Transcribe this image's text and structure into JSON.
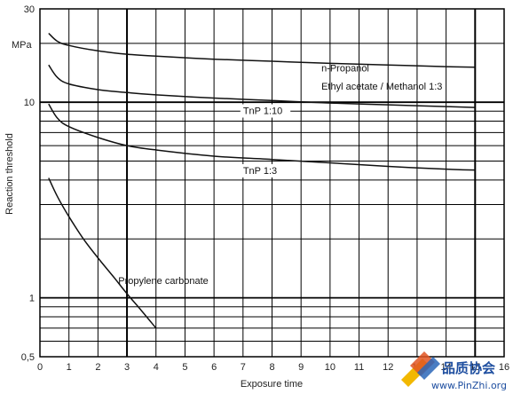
{
  "chart_data": {
    "type": "line",
    "title": "",
    "xlabel": "Exposure time",
    "ylabel": "Reaction threshold",
    "yunit": "MPa",
    "yscale": "log",
    "xlim": [
      0,
      16
    ],
    "ylim": [
      0.5,
      30
    ],
    "grid": true,
    "x_ticks": [
      "0",
      "1",
      "2",
      "3",
      "4",
      "5",
      "6",
      "7",
      "8",
      "9",
      "10",
      "11",
      "12",
      "13",
      "14",
      "15",
      "16"
    ],
    "y_ticks": [
      {
        "value": 30,
        "label": "30"
      },
      {
        "value": 10,
        "label": "10"
      },
      {
        "value": 1,
        "label": "1"
      },
      {
        "value": 0.5,
        "label": "0,5"
      }
    ],
    "series": [
      {
        "name": "n-Propanol",
        "color": "#111111",
        "x": [
          0.3,
          0.6,
          1,
          2,
          3,
          4,
          6,
          8,
          10,
          12,
          14,
          15
        ],
        "y": [
          22.5,
          20.5,
          19.5,
          18.3,
          17.6,
          17.2,
          16.6,
          16.2,
          15.8,
          15.5,
          15.2,
          15.1
        ]
      },
      {
        "name": "Ethyl acetate / Methanol 1:3",
        "color": "#111111",
        "x": [
          0.3,
          0.6,
          1,
          2,
          3,
          4,
          6,
          8,
          10,
          12,
          14,
          15
        ],
        "y": [
          15.5,
          13.4,
          12.4,
          11.6,
          11.2,
          10.9,
          10.5,
          10.2,
          9.9,
          9.7,
          9.5,
          9.4
        ]
      },
      {
        "name": "TnP 1:10",
        "color": "#111111",
        "x": [
          0.3,
          0.6,
          1,
          2,
          3,
          4,
          6,
          8,
          10,
          12,
          14,
          15
        ],
        "y": [
          9.8,
          8.3,
          7.5,
          6.6,
          6.0,
          5.7,
          5.3,
          5.1,
          4.9,
          4.7,
          4.55,
          4.5
        ]
      },
      {
        "name": "TnP 1:3",
        "color": "#111111",
        "x": [
          0.3,
          0.6,
          1,
          1.5,
          2,
          2.5,
          3,
          3.5,
          4
        ],
        "y": [
          4.1,
          3.3,
          2.6,
          2.0,
          1.6,
          1.3,
          1.05,
          0.86,
          0.7
        ]
      }
    ],
    "labels": [
      {
        "text": "n-Propanol",
        "x": 9.7,
        "y": 14.4,
        "boxed": false,
        "series": 0
      },
      {
        "text": "Ethyl acetate / Methanol 1:3",
        "x": 9.7,
        "y": 11.6,
        "boxed": false,
        "series": 1
      },
      {
        "text": "TnP 1:10",
        "x": 7.0,
        "y": 8.7,
        "boxed": true,
        "series": 1
      },
      {
        "text": "TnP 1:3",
        "x": 7.0,
        "y": 4.3,
        "boxed": true,
        "series": 2
      },
      {
        "text": "Propylene carbonate",
        "x": 2.7,
        "y": 1.18,
        "boxed": false,
        "series": 3
      }
    ]
  },
  "watermark": {
    "text": "品质协会",
    "url": "www.PinZhi.org"
  }
}
